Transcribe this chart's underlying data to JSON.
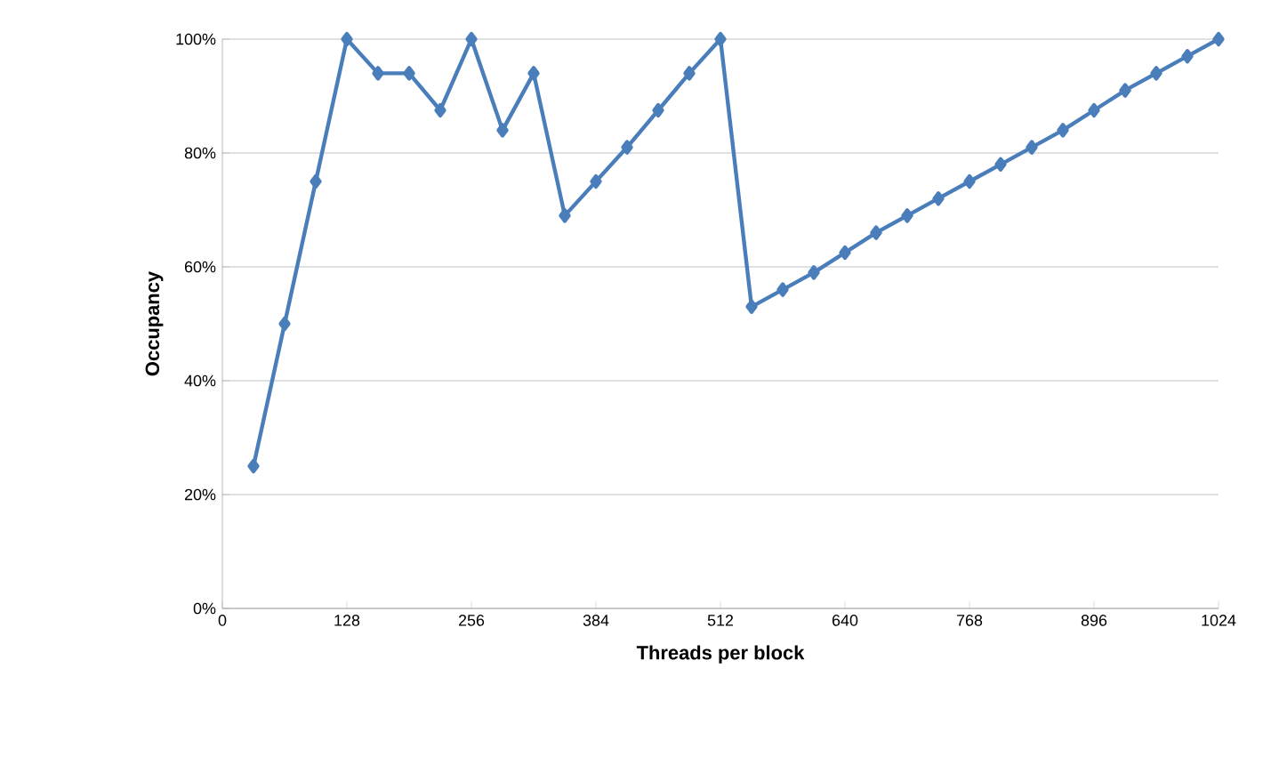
{
  "chart_data": {
    "type": "line",
    "xlabel": "Threads per block",
    "ylabel": "Occupancy",
    "x": [
      32,
      64,
      96,
      128,
      160,
      192,
      224,
      256,
      288,
      320,
      352,
      384,
      416,
      448,
      480,
      512,
      544,
      576,
      608,
      640,
      672,
      704,
      736,
      768,
      800,
      832,
      864,
      896,
      928,
      960,
      992,
      1024
    ],
    "series": [
      {
        "color": "#4a7ebb",
        "values": [
          25,
          50,
          75,
          100,
          94,
          94,
          87.5,
          100,
          84,
          94,
          69,
          75,
          81,
          87.5,
          94,
          100,
          53,
          56,
          59,
          62.5,
          66,
          69,
          72,
          75,
          78,
          81,
          84,
          87.5,
          91,
          94,
          97,
          100
        ]
      }
    ],
    "xlim": [
      0,
      1024
    ],
    "ylim": [
      0,
      100
    ],
    "xticks": [
      0,
      128,
      256,
      384,
      512,
      640,
      768,
      896,
      1024
    ],
    "yticks": [
      {
        "value": 0,
        "label": "0%"
      },
      {
        "value": 20,
        "label": "20%"
      },
      {
        "value": 40,
        "label": "40%"
      },
      {
        "value": 60,
        "label": "60%"
      },
      {
        "value": 80,
        "label": "80%"
      },
      {
        "value": 100,
        "label": "100%"
      }
    ],
    "grid": "y",
    "marker": "diamond",
    "line_style": "solid"
  }
}
